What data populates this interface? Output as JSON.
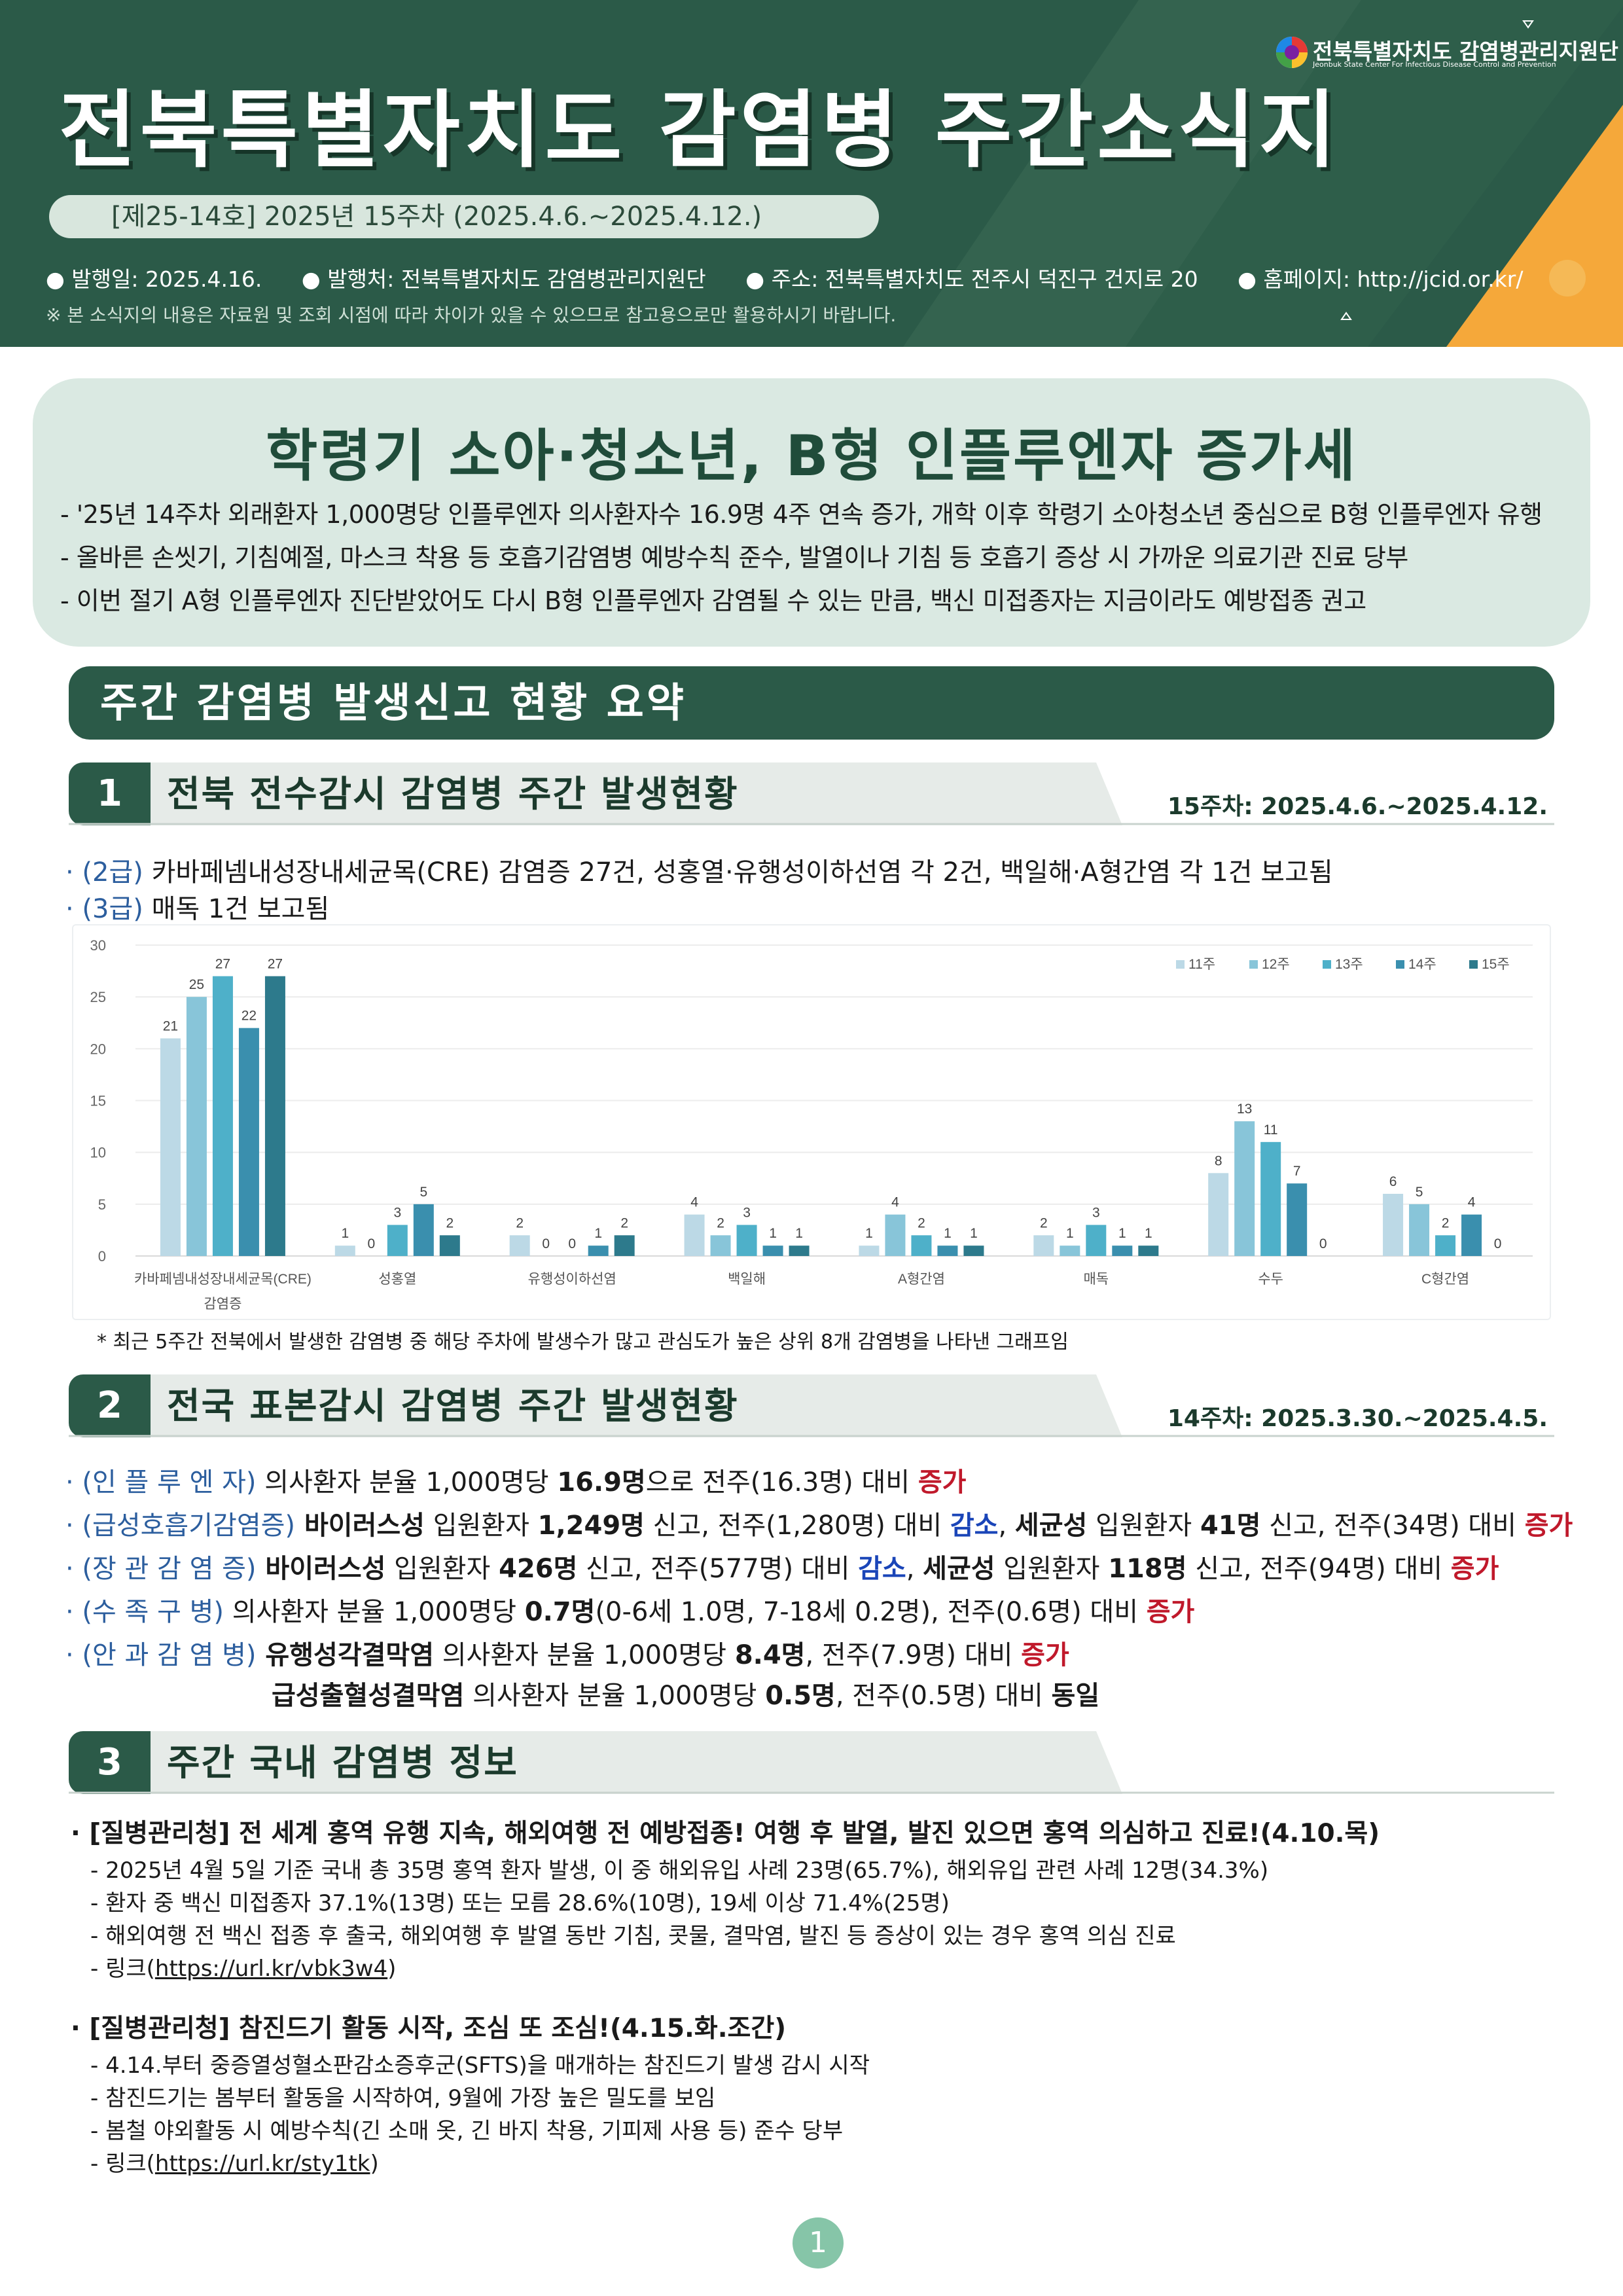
{
  "header": {
    "title": "전북특별자치도 감염병 주간소식지",
    "issue": "[제25-14호] 2025년 15주차 (2025.4.6.~2025.4.12.)",
    "info": {
      "date": "● 발행일: 2025.4.16.",
      "publisher": "● 발행처: 전북특별자치도 감염병관리지원단",
      "address": "● 주소: 전북특별자치도 전주시 덕진구 건지로 20",
      "homepage": "● 홈페이지: http://jcid.or.kr/"
    },
    "disclaimer": "※ 본 소식지의 내용은 자료원 및 조회 시점에 따라 차이가 있을 수 있으므로 참고용으로만 활용하시기 바랍니다.",
    "logo_name": "전북특별자치도 감염병관리지원단",
    "logo_eng": "Jeonbuk State Center For Infectious Disease Control and Prevention",
    "colors": {
      "primary": "#2b5a48",
      "accent": "#f5a83a",
      "light": "#dae9e2"
    }
  },
  "headline": {
    "title": "학령기 소아·청소년, B형 인플루엔자 증가세",
    "bullets": [
      "- '25년 14주차 외래환자 1,000명당 인플루엔자 의사환자수 16.9명 4주 연속 증가, 개학 이후 학령기 소아청소년 중심으로 B형 인플루엔자 유행",
      "- 올바른 손씻기, 기침예절, 마스크 착용 등 호흡기감염병 예방수칙 준수, 발열이나 기침 등 호흡기 증상 시 가까운 의료기관 진료 당부",
      "- 이번 절기 A형 인플루엔자 진단받았어도 다시 B형 인플루엔자 감염될 수 있는 만큼, 백신 미접종자는 지금이라도 예방접종 권고"
    ]
  },
  "summary_title": "주간 감염병 발생신고 현황 요약",
  "section1": {
    "num": "1",
    "title": "전북 전수감시 감염병 주간 발생현황",
    "period": "15주차: 2025.4.6.~2025.4.12.",
    "line1_prefix": "· (2급)",
    "line1_text": " 카바페넴내성장내세균목(CRE) 감염증 27건, 성홍열·유행성이하선염 각 2건, 백일해·A형간염 각 1건 보고됨",
    "line2_prefix": "· (3급)",
    "line2_text": " 매독 1건 보고됨",
    "note": "* 최근 5주간 전북에서 발생한 감염병 중 해당 주차에 발생수가 많고 관심도가 높은 상위 8개 감염병을 나타낸 그래프임"
  },
  "chart_data": {
    "type": "bar",
    "categories": [
      "카바페넴내성장내세균목(CRE)\n감염증",
      "성홍열",
      "유행성이하선염",
      "백일해",
      "A형간염",
      "매독",
      "수두",
      "C형간염"
    ],
    "series": [
      {
        "name": "11주",
        "color": "#bcd9e6",
        "values": [
          21,
          1,
          2,
          4,
          1,
          2,
          8,
          6
        ]
      },
      {
        "name": "12주",
        "color": "#88c5d9",
        "values": [
          25,
          0,
          0,
          2,
          4,
          1,
          13,
          5
        ]
      },
      {
        "name": "13주",
        "color": "#4eb0c9",
        "values": [
          27,
          3,
          0,
          3,
          2,
          3,
          11,
          2
        ]
      },
      {
        "name": "14주",
        "color": "#3a8fae",
        "values": [
          22,
          5,
          1,
          1,
          1,
          1,
          7,
          4
        ]
      },
      {
        "name": "15주",
        "color": "#2d7a8c",
        "values": [
          27,
          2,
          2,
          1,
          1,
          1,
          0,
          0
        ]
      }
    ],
    "yticks": [
      0,
      5,
      10,
      15,
      20,
      25,
      30
    ],
    "ylim": [
      0,
      30
    ],
    "grid": true,
    "legend": "top-right"
  },
  "section2": {
    "num": "2",
    "title": "전국 표본감시 감염병 주간 발생현황",
    "period": "14주차: 2025.3.30.~2025.4.5.",
    "flu_label": "· (인 플 루 엔 자)",
    "flu_a": " 의사환자 분율 1,000명당 ",
    "flu_b": "16.9명",
    "flu_c": "으로 전주(16.3명) 대비 ",
    "flu_d": "증가",
    "resp_label": "· (급성호흡기감염증)",
    "resp_a": " 바이러스성",
    "resp_b": " 입원환자 ",
    "resp_c": "1,249명",
    "resp_d": " 신고, 전주(1,280명) 대비 ",
    "resp_e": "감소",
    "resp_f": ", ",
    "resp_g": "세균성",
    "resp_h": " 입원환자 ",
    "resp_i": "41명",
    "resp_j": " 신고, 전주(34명) 대비 ",
    "resp_k": "증가",
    "gut_label": "· (장 관 감 염 증)",
    "gut_a": " 바이러스성",
    "gut_b": " 입원환자 ",
    "gut_c": "426명",
    "gut_d": " 신고, 전주(577명) 대비 ",
    "gut_e": "감소",
    "gut_f": ", ",
    "gut_g": "세균성",
    "gut_h": " 입원환자 ",
    "gut_i": "118명",
    "gut_j": " 신고, 전주(94명) 대비 ",
    "gut_k": "증가",
    "hfmd_label": "· (수 족 구 병)",
    "hfmd_a": " 의사환자 분율 1,000명당 ",
    "hfmd_b": "0.7명",
    "hfmd_c": "(0-6세 1.0명, 7-18세 0.2명), 전주(0.6명) 대비 ",
    "hfmd_d": "증가",
    "eye_label": "· (안 과 감 염 병)",
    "eye_a": " 유행성각결막염",
    "eye_b": " 의사환자 분율 1,000명당 ",
    "eye_c": "8.4명",
    "eye_d": ", 전주(7.9명) 대비 ",
    "eye_e": "증가",
    "eye2_a": "급성출혈성결막염",
    "eye2_b": " 의사환자 분율 1,000명당 ",
    "eye2_c": "0.5명",
    "eye2_d": ", 전주(0.5명) 대비 ",
    "eye2_e": "동일"
  },
  "section3": {
    "num": "3",
    "title": "주간 국내 감염병 정보",
    "news1": {
      "title": "· [질병관리청] 전 세계 홍역 유행 지속, 해외여행 전 예방접종! 여행 후 발열, 발진 있으면 홍역 의심하고 진료!(4.10.목)",
      "items": [
        "- 2025년 4월 5일 기준 국내 총 35명 홍역 환자 발생, 이 중 해외유입 사례 23명(65.7%), 해외유입 관련 사례 12명(34.3%)",
        "- 환자 중 백신 미접종자 37.1%(13명) 또는 모름 28.6%(10명), 19세 이상 71.4%(25명)",
        "- 해외여행 전 백신 접종 후 출국, 해외여행 후 발열 동반 기침, 콧물, 결막염, 발진 등 증상이 있는 경우 홍역 의심 진료"
      ],
      "link_prefix": "- 링크(",
      "link": "https://url.kr/vbk3w4",
      "link_suffix": ")"
    },
    "news2": {
      "title": "· [질병관리청] 참진드기 활동 시작, 조심 또 조심!(4.15.화.조간)",
      "items": [
        "- 4.14.부터 중증열성혈소판감소증후군(SFTS)을 매개하는 참진드기 발생 감시 시작",
        "- 참진드기는 봄부터 활동을 시작하여, 9월에 가장 높은 밀도를 보임",
        "- 봄철 야외활동 시 예방수칙(긴 소매 옷, 긴 바지 착용, 기피제 사용 등) 준수 당부"
      ],
      "link_prefix": "- 링크(",
      "link": "https://url.kr/sty1tk",
      "link_suffix": ")"
    }
  },
  "page_number": "1"
}
